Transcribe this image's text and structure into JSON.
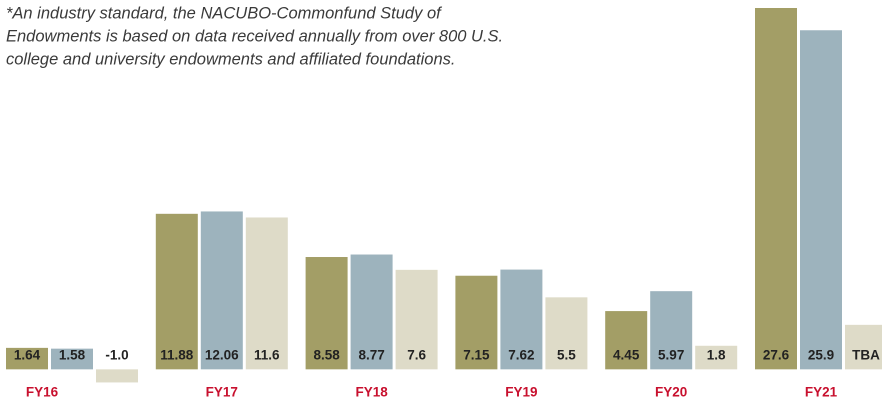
{
  "chart_data": {
    "type": "bar",
    "annotation": [
      "*An industry standard, the NACUBO-Commonfund Study of",
      "Endowments is based on data received annually from over 800 U.S.",
      "college and university endowments and affiliated foundations."
    ],
    "categories": [
      "FY16",
      "FY17",
      "FY18",
      "FY19",
      "FY20",
      "FY21"
    ],
    "series": [
      {
        "color": "#a39e66",
        "values": [
          1.64,
          11.88,
          8.58,
          7.15,
          4.45,
          27.6
        ],
        "value_labels": [
          "1.64",
          "11.88",
          "8.58",
          "7.15",
          "4.45",
          "27.6"
        ]
      },
      {
        "color": "#9db3bd",
        "values": [
          1.58,
          12.06,
          8.77,
          7.62,
          5.97,
          25.9
        ],
        "value_labels": [
          "1.58",
          "12.06",
          "8.77",
          "7.62",
          "5.97",
          "25.9"
        ]
      },
      {
        "color": "#dedbc8",
        "values": [
          -1.0,
          11.6,
          7.6,
          5.5,
          1.8,
          3.4
        ],
        "value_labels": [
          "-1.0",
          "11.6",
          "7.6",
          "5.5",
          "1.8",
          "TBA"
        ]
      }
    ],
    "ylim": [
      -2.8,
      27.6
    ]
  }
}
